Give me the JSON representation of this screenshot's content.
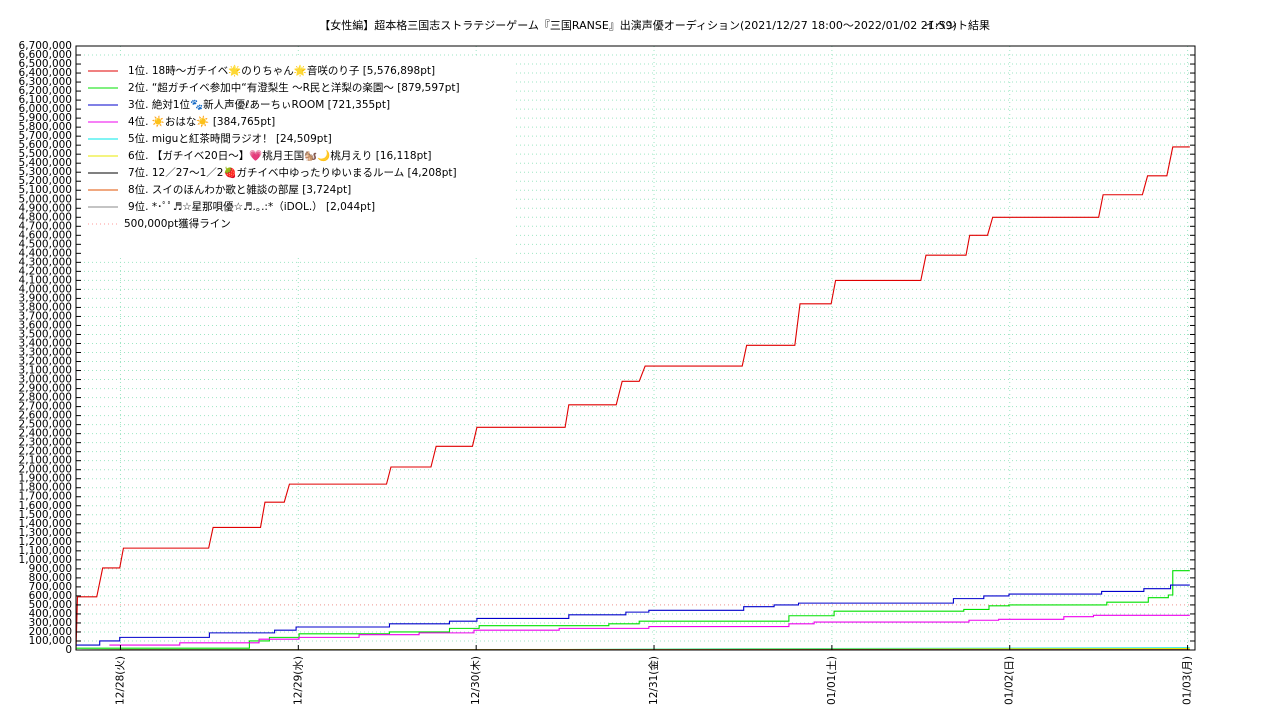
{
  "chart_data": {
    "type": "line",
    "title": "【女性編】超本格三国志ストラテジーゲーム『三国RANSE』出演声優オーディション(2021/12/27 18:00〜2022/01/02 21:59)",
    "subtitle": "イベント結果",
    "xlim": [
      -6,
      145
    ],
    "xticks": [
      {
        "value": 0,
        "label": "12/28(火)"
      },
      {
        "value": 24,
        "label": "12/29(水)"
      },
      {
        "value": 48,
        "label": "12/30(木)"
      },
      {
        "value": 72,
        "label": "12/31(金)"
      },
      {
        "value": 96,
        "label": "01/01(土)"
      },
      {
        "value": 120,
        "label": "01/02(日)"
      },
      {
        "value": 144,
        "label": "01/03(月)"
      }
    ],
    "ylim": [
      0,
      6700000
    ],
    "yticks": [
      0,
      {
        "value": 100000,
        "label": "100,000"
      },
      {
        "value": 200000,
        "label": "200,000"
      },
      {
        "value": 300000,
        "label": "300,000"
      },
      {
        "value": 400000,
        "label": "400,000"
      },
      {
        "value": 500000,
        "label": "500,000"
      },
      {
        "value": 600000,
        "label": "600,000"
      },
      {
        "value": 700000,
        "label": "700,000"
      },
      {
        "value": 800000,
        "label": "800,000"
      },
      {
        "value": 900000,
        "label": "900,000"
      },
      {
        "value": 1000000,
        "label": "1,000,000"
      },
      {
        "value": 1100000,
        "label": "1,100,000"
      },
      {
        "value": 1200000,
        "label": "1,200,000"
      },
      {
        "value": 1300000,
        "label": "1,300,000"
      },
      {
        "value": 1400000,
        "label": "1,400,000"
      },
      {
        "value": 1500000,
        "label": "1,500,000"
      },
      {
        "value": 1600000,
        "label": "1,600,000"
      },
      {
        "value": 1700000,
        "label": "1,700,000"
      },
      {
        "value": 1800000,
        "label": "1,800,000"
      },
      {
        "value": 1900000,
        "label": "1,900,000"
      },
      {
        "value": 2000000,
        "label": "2,000,000"
      },
      {
        "value": 2100000,
        "label": "2,100,000"
      },
      {
        "value": 2200000,
        "label": "2,200,000"
      },
      {
        "value": 2300000,
        "label": "2,300,000"
      },
      {
        "value": 2400000,
        "label": "2,400,000"
      },
      {
        "value": 2500000,
        "label": "2,500,000"
      },
      {
        "value": 2600000,
        "label": "2,600,000"
      },
      {
        "value": 2700000,
        "label": "2,700,000"
      },
      {
        "value": 2800000,
        "label": "2,800,000"
      },
      {
        "value": 2900000,
        "label": "2,900,000"
      },
      {
        "value": 3000000,
        "label": "3,000,000"
      },
      {
        "value": 3100000,
        "label": "3,100,000"
      },
      {
        "value": 3200000,
        "label": "3,200,000"
      },
      {
        "value": 3300000,
        "label": "3,300,000"
      },
      {
        "value": 3400000,
        "label": "3,400,000"
      },
      {
        "value": 3500000,
        "label": "3,500,000"
      },
      {
        "value": 3600000,
        "label": "3,600,000"
      },
      {
        "value": 3700000,
        "label": "3,700,000"
      },
      {
        "value": 3800000,
        "label": "3,800,000"
      },
      {
        "value": 3900000,
        "label": "3,900,000"
      },
      {
        "value": 4000000,
        "label": "4,000,000"
      },
      {
        "value": 4100000,
        "label": "4,100,000"
      },
      {
        "value": 4200000,
        "label": "4,200,000"
      },
      {
        "value": 4300000,
        "label": "4,300,000"
      },
      {
        "value": 4400000,
        "label": "4,400,000"
      },
      {
        "value": 4500000,
        "label": "4,500,000"
      },
      {
        "value": 4600000,
        "label": "4,600,000"
      },
      {
        "value": 4700000,
        "label": "4,700,000"
      },
      {
        "value": 4800000,
        "label": "4,800,000"
      },
      {
        "value": 4900000,
        "label": "4,900,000"
      },
      {
        "value": 5000000,
        "label": "5,000,000"
      },
      {
        "value": 5100000,
        "label": "5,100,000"
      },
      {
        "value": 5200000,
        "label": "5,200,000"
      },
      {
        "value": 5300000,
        "label": "5,300,000"
      },
      {
        "value": 5400000,
        "label": "5,400,000"
      },
      {
        "value": 5500000,
        "label": "5,500,000"
      },
      {
        "value": 5600000,
        "label": "5,600,000"
      },
      {
        "value": 5700000,
        "label": "5,700,000"
      },
      {
        "value": 5800000,
        "label": "5,800,000"
      },
      {
        "value": 5900000,
        "label": "5,900,000"
      },
      {
        "value": 6000000,
        "label": "6,000,000"
      },
      {
        "value": 6100000,
        "label": "6,100,000"
      },
      {
        "value": 6200000,
        "label": "6,200,000"
      },
      {
        "value": 6300000,
        "label": "6,300,000"
      },
      {
        "value": 6400000,
        "label": "6,400,000"
      },
      {
        "value": 6500000,
        "label": "6,500,000"
      },
      {
        "value": 6600000,
        "label": "6,600,000"
      },
      {
        "value": 6700000,
        "label": "6,700,000"
      }
    ],
    "grid": true,
    "legend": "upper left",
    "series": [
      {
        "name": "1位. 18時〜ガチイベ🌟のりちゃん🌟音咲のり子 [5,576,898pt]",
        "color": "#e00000",
        "step": false,
        "x": [
          -6,
          -5.8,
          -3.2,
          -2.4,
          -0.1,
          0.4,
          11.9,
          12.5,
          18.9,
          19.5,
          22.1,
          22.8,
          35.9,
          36.5,
          41.9,
          42.6,
          47.5,
          48.1,
          60.0,
          60.5,
          66.9,
          67.7,
          70.0,
          70.8,
          83.9,
          84.5,
          91.0,
          91.7,
          95.9,
          96.5,
          108.0,
          108.7,
          114.1,
          114.6,
          117.0,
          117.7,
          132.0,
          132.6,
          137.9,
          138.6,
          141.2,
          142.0,
          144.3
        ],
        "values": [
          0,
          590000,
          590000,
          910000,
          910000,
          1130000,
          1130000,
          1360000,
          1360000,
          1640000,
          1640000,
          1840000,
          1840000,
          2030000,
          2030000,
          2260000,
          2260000,
          2470000,
          2470000,
          2720000,
          2720000,
          2980000,
          2980000,
          3150000,
          3150000,
          3380000,
          3380000,
          3840000,
          3840000,
          4100000,
          4100000,
          4380000,
          4380000,
          4600000,
          4600000,
          4800000,
          4800000,
          5050000,
          5050000,
          5260000,
          5260000,
          5580000,
          5580000
        ]
      },
      {
        "name": "2位. “超ガチイベ参加中“有澄梨生 〜R民と洋梨の楽園〜 [879,597pt]",
        "color": "#00e000",
        "step": true,
        "x": [
          -6,
          17.4,
          20.1,
          24.1,
          36.3,
          44.4,
          48.4,
          65.9,
          70.0,
          90.2,
          96.3,
          113.8,
          117.2,
          119.9,
          133.1,
          138.7,
          141.4,
          142.0,
          144.3
        ],
        "values": [
          20000,
          100000,
          140000,
          180000,
          200000,
          240000,
          270000,
          290000,
          320000,
          380000,
          430000,
          450000,
          490000,
          500000,
          530000,
          580000,
          610000,
          880000,
          880000
        ]
      },
      {
        "name": "3位. 絶対1位🐾新人声優ℓあーちぃROOM [721,355pt]",
        "color": "#0000cc",
        "step": true,
        "x": [
          -6,
          -2.8,
          -0.1,
          12.0,
          20.8,
          23.7,
          36.3,
          44.4,
          48.1,
          60.5,
          68.2,
          71.3,
          84.1,
          88.2,
          91.5,
          112.4,
          116.5,
          119.9,
          132.4,
          138.1,
          141.7,
          144.3
        ],
        "values": [
          55000,
          100000,
          140000,
          190000,
          220000,
          255000,
          290000,
          320000,
          350000,
          390000,
          420000,
          440000,
          480000,
          500000,
          520000,
          570000,
          600000,
          620000,
          650000,
          680000,
          720000,
          720000
        ]
      },
      {
        "name": "4位. ☀️おはな☀️ [384,765pt]",
        "color": "#ee00ee",
        "step": true,
        "x": [
          -1.5,
          8.0,
          18.7,
          24.1,
          32.2,
          40.3,
          47.7,
          59.2,
          71.3,
          90.2,
          93.6,
          114.5,
          118.5,
          127.3,
          131.3,
          144.3
        ],
        "values": [
          55000,
          80000,
          120000,
          140000,
          170000,
          190000,
          220000,
          240000,
          260000,
          290000,
          310000,
          330000,
          340000,
          370000,
          385000,
          385000
        ]
      },
      {
        "name": "5位. miguと紅茶時間ラジオ！ [24,509pt]",
        "color": "#00e8e8",
        "step": false,
        "x": [
          -6,
          60,
          85,
          144.3
        ],
        "values": [
          0,
          5000,
          15000,
          24500
        ]
      },
      {
        "name": "6位. 【ガチイベ20日〜】💗桃月王国🐿️🌙桃月えり [16,118pt]",
        "color": "#e8e800",
        "step": false,
        "x": [
          -6,
          80,
          144.3
        ],
        "values": [
          0,
          8000,
          16000
        ]
      },
      {
        "name": "7位. 12／27〜1／2🍓ガチイベ中ゆったりゆいまるルーム [4,208pt]",
        "color": "#000000",
        "step": false,
        "x": [
          -6,
          144.3
        ],
        "values": [
          0,
          4200
        ]
      },
      {
        "name": "8位. スイのほんわか歌と雑談の部屋 [3,724pt]",
        "color": "#e05000",
        "step": false,
        "x": [
          -6,
          144.3
        ],
        "values": [
          0,
          3700
        ]
      },
      {
        "name": "9位. *･ﾟﾟ♬☆星那唄優☆♬.｡.:*（iDOL.） [2,044pt]",
        "color": "#888888",
        "step": false,
        "x": [
          -6,
          144.3
        ],
        "values": [
          0,
          2000
        ]
      }
    ],
    "reference_line": {
      "name": "500,000pt獲得ライン",
      "value": 500000,
      "color": "#ff9999"
    }
  }
}
